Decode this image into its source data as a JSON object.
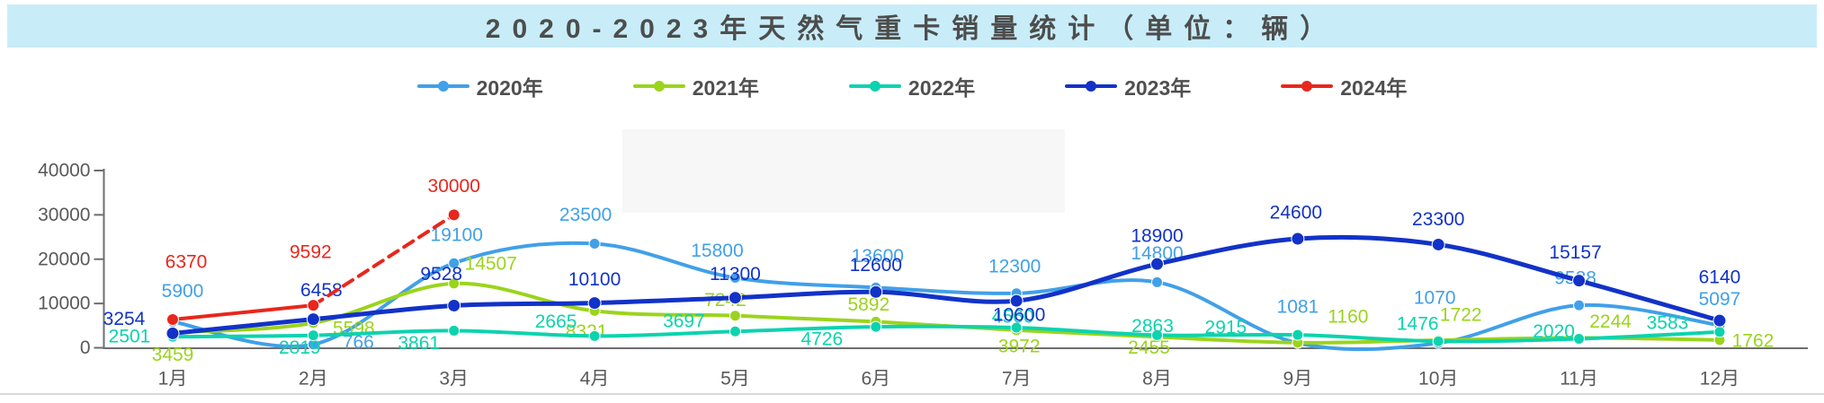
{
  "title": {
    "text": "2020-2023年天然气重卡销量统计（单位：辆）"
  },
  "legend": {
    "items": [
      {
        "label": "2020年",
        "color": "#41a0e8"
      },
      {
        "label": "2021年",
        "color": "#9bd41c"
      },
      {
        "label": "2022年",
        "color": "#0cd3ae"
      },
      {
        "label": "2023年",
        "color": "#1232c8"
      },
      {
        "label": "2024年",
        "color": "#e8271d"
      }
    ]
  },
  "chart_data": {
    "type": "line",
    "title": "2020-2023年天然气重卡销量统计（单位：辆）",
    "categories": [
      "1月",
      "2月",
      "3月",
      "4月",
      "5月",
      "6月",
      "7月",
      "8月",
      "9月",
      "10月",
      "11月",
      "12月"
    ],
    "ylim": [
      0,
      40000
    ],
    "yticks": [
      0,
      10000,
      20000,
      30000,
      40000
    ],
    "grid": false,
    "legend_position": "top",
    "axis_color": "#6e6e6e",
    "tick_label_color": "#595959",
    "series": [
      {
        "name": "2020年",
        "color": "#41a0e8",
        "line_style": "solid",
        "values": [
          5900,
          766,
          19100,
          23500,
          15800,
          13600,
          12300,
          14800,
          1081,
          1070,
          9588,
          5097
        ]
      },
      {
        "name": "2021年",
        "color": "#9bd41c",
        "line_style": "solid",
        "values": [
          3459,
          5598,
          14507,
          8321,
          7242,
          5892,
          3972,
          2455,
          1160,
          1722,
          2244,
          1762
        ]
      },
      {
        "name": "2022年",
        "color": "#0cd3ae",
        "line_style": "solid",
        "values": [
          2501,
          2819,
          3861,
          2665,
          3697,
          4726,
          4560,
          2863,
          2915,
          1476,
          2020,
          3583
        ]
      },
      {
        "name": "2023年",
        "color": "#1232c8",
        "line_style": "solid",
        "values": [
          3254,
          6458,
          9528,
          10100,
          11300,
          12600,
          10600,
          18900,
          24600,
          23300,
          15157,
          6140
        ]
      },
      {
        "name": "2024年",
        "color": "#e8271d",
        "line_style": "solid_then_dashed",
        "dash_from_index": 1,
        "values": [
          6370,
          9592,
          30000
        ]
      }
    ]
  }
}
